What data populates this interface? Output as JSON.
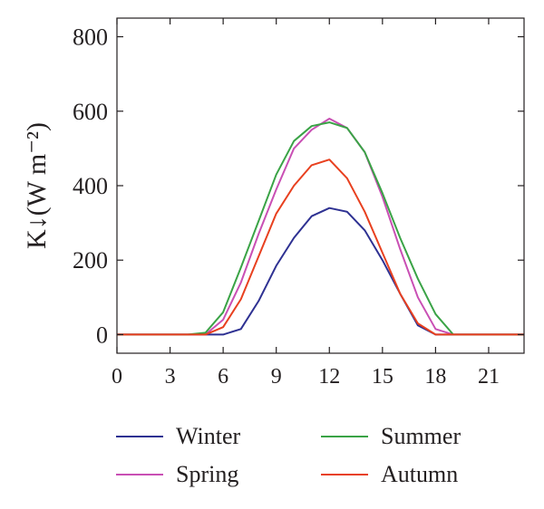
{
  "chart_data": {
    "type": "line",
    "ylabel": "K↓(W m⁻²)",
    "xlim": [
      0,
      23
    ],
    "ylim": [
      -50,
      850
    ],
    "xticks": [
      0,
      3,
      6,
      9,
      12,
      15,
      18,
      21
    ],
    "yticks": [
      0,
      200,
      400,
      600,
      800
    ],
    "xtick_labels": [
      "0",
      "3",
      "6",
      "9",
      "12",
      "15",
      "18",
      "21"
    ],
    "ytick_labels": [
      "0",
      "200",
      "400",
      "600",
      "800"
    ],
    "legend_position": "bottom",
    "x": [
      0,
      1,
      2,
      3,
      4,
      5,
      6,
      7,
      8,
      9,
      10,
      11,
      12,
      13,
      14,
      15,
      16,
      17,
      18,
      19,
      20,
      21,
      22,
      23
    ],
    "series": [
      {
        "name": "Winter",
        "color": "#2e3192",
        "values": [
          0,
          0,
          0,
          0,
          0,
          0,
          0,
          15,
          90,
          185,
          260,
          318,
          340,
          330,
          280,
          200,
          110,
          25,
          0,
          0,
          0,
          0,
          0,
          0
        ]
      },
      {
        "name": "Spring",
        "color": "#c94fb4",
        "values": [
          0,
          0,
          0,
          0,
          0,
          0,
          40,
          140,
          270,
          390,
          500,
          550,
          580,
          555,
          490,
          370,
          230,
          100,
          15,
          0,
          0,
          0,
          0,
          0
        ]
      },
      {
        "name": "Summer",
        "color": "#3aa346",
        "values": [
          0,
          0,
          0,
          0,
          0,
          5,
          60,
          180,
          305,
          430,
          520,
          560,
          570,
          555,
          490,
          380,
          260,
          150,
          55,
          0,
          0,
          0,
          0,
          0
        ]
      },
      {
        "name": "Autumn",
        "color": "#e8401f",
        "values": [
          0,
          0,
          0,
          0,
          0,
          0,
          20,
          95,
          210,
          325,
          400,
          455,
          470,
          420,
          330,
          220,
          110,
          30,
          0,
          0,
          0,
          0,
          0,
          0
        ]
      }
    ]
  },
  "legend": {
    "items": [
      {
        "label": "Winter",
        "color": "#2e3192"
      },
      {
        "label": "Summer",
        "color": "#3aa346"
      },
      {
        "label": "Spring",
        "color": "#c94fb4"
      },
      {
        "label": "Autumn",
        "color": "#e8401f"
      }
    ]
  }
}
